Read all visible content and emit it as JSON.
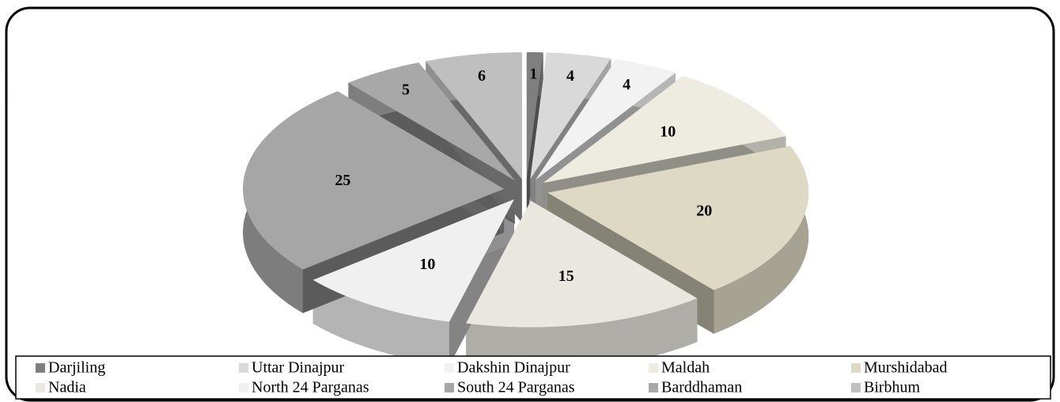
{
  "chart_data": {
    "type": "pie",
    "categories": [
      "Darjiling",
      "Uttar Dinajpur",
      "Dakshin Dinajpur",
      "Maldah",
      "Murshidabad",
      "Nadia",
      "North 24 Parganas",
      "South 24 Parganas",
      "Barddhaman",
      "Birbhum"
    ],
    "values": [
      1,
      4,
      4,
      10,
      20,
      15,
      10,
      25,
      5,
      6
    ],
    "colors": [
      "#7f7f7f",
      "#d9d9d9",
      "#f2f2f2",
      "#eeece1",
      "#ddd9c4",
      "#e9e7df",
      "#f0f0f0",
      "#a6a6a6",
      "#a8a8a8",
      "#bfbfbf"
    ]
  }
}
